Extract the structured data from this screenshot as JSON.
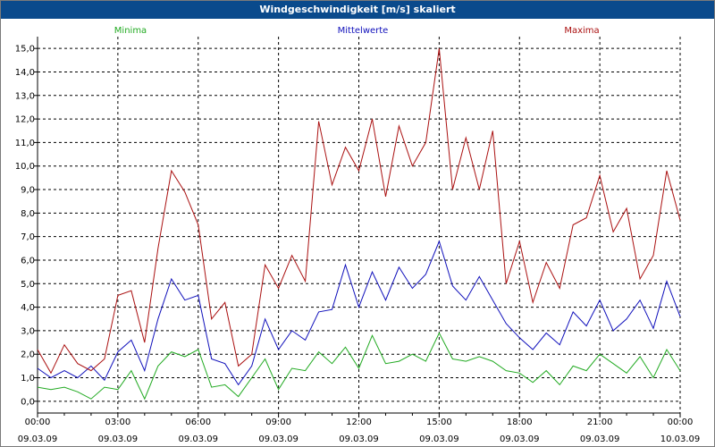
{
  "window": {
    "title": "Windgeschwindigkeit [m/s] skaliert"
  },
  "colors": {
    "minima": "#22aa22",
    "mittelwerte": "#1010bb",
    "maxima": "#aa1010",
    "grid": "#000000",
    "titlebar": "#0a4a8c"
  },
  "chart_data": {
    "type": "line",
    "title": "Windgeschwindigkeit [m/s] skaliert",
    "xlabel": "",
    "ylabel": "",
    "xlim": [
      "09.03.09 00:00",
      "10.03.09 00:00"
    ],
    "ylim": [
      -0.5,
      15.5
    ],
    "grid": true,
    "legend": "top",
    "y_ticks": [
      "0,0",
      "1,0",
      "2,0",
      "3,0",
      "4,0",
      "5,0",
      "6,0",
      "7,0",
      "8,0",
      "9,0",
      "10,0",
      "11,0",
      "12,0",
      "13,0",
      "14,0",
      "15,0"
    ],
    "x_ticks": [
      {
        "time": "00:00",
        "date": "09.03.09"
      },
      {
        "time": "03:00",
        "date": "09.03.09"
      },
      {
        "time": "06:00",
        "date": "09.03.09"
      },
      {
        "time": "09:00",
        "date": "09.03.09"
      },
      {
        "time": "12:00",
        "date": "09.03.09"
      },
      {
        "time": "15:00",
        "date": "09.03.09"
      },
      {
        "time": "18:00",
        "date": "09.03.09"
      },
      {
        "time": "21:00",
        "date": "09.03.09"
      },
      {
        "time": "00:00",
        "date": "10.03.09"
      }
    ],
    "x": [
      "00:00",
      "00:30",
      "01:00",
      "01:30",
      "02:00",
      "02:30",
      "03:00",
      "03:30",
      "04:00",
      "04:30",
      "05:00",
      "05:30",
      "06:00",
      "06:30",
      "07:00",
      "07:30",
      "08:00",
      "08:30",
      "09:00",
      "09:30",
      "10:00",
      "10:30",
      "11:00",
      "11:30",
      "12:00",
      "12:30",
      "13:00",
      "13:30",
      "14:00",
      "14:30",
      "15:00",
      "15:30",
      "16:00",
      "16:30",
      "17:00",
      "17:30",
      "18:00",
      "18:30",
      "19:00",
      "19:30",
      "20:00",
      "20:30",
      "21:00",
      "21:30",
      "22:00",
      "22:30",
      "23:00",
      "23:30",
      "00:00"
    ],
    "series": [
      {
        "name": "Minima",
        "color": "#22aa22",
        "values": [
          0.6,
          0.5,
          0.6,
          0.4,
          0.1,
          0.6,
          0.5,
          1.3,
          0.1,
          1.5,
          2.1,
          1.9,
          2.2,
          0.6,
          0.7,
          0.2,
          1.0,
          1.8,
          0.5,
          1.4,
          1.3,
          2.1,
          1.6,
          2.3,
          1.4,
          2.8,
          1.6,
          1.7,
          2.0,
          1.7,
          2.9,
          1.8,
          1.7,
          1.9,
          1.7,
          1.3,
          1.2,
          0.8,
          1.3,
          0.7,
          1.5,
          1.3,
          2.0,
          1.6,
          1.2,
          1.9,
          1.0,
          2.2,
          1.3
        ]
      },
      {
        "name": "Mittelwerte",
        "color": "#1010bb",
        "values": [
          1.4,
          1.0,
          1.3,
          1.0,
          1.5,
          0.9,
          2.1,
          2.6,
          1.3,
          3.5,
          5.2,
          4.3,
          4.5,
          1.8,
          1.6,
          0.7,
          1.5,
          3.5,
          2.2,
          3.0,
          2.6,
          3.8,
          3.9,
          5.8,
          4.0,
          5.5,
          4.3,
          5.7,
          4.8,
          5.4,
          6.8,
          4.9,
          4.3,
          5.3,
          4.3,
          3.3,
          2.7,
          2.2,
          2.9,
          2.4,
          3.8,
          3.2,
          4.3,
          3.0,
          3.5,
          4.3,
          3.1,
          5.1,
          3.6
        ]
      },
      {
        "name": "Maxima",
        "color": "#aa1010",
        "values": [
          2.2,
          1.2,
          2.4,
          1.6,
          1.3,
          1.8,
          4.5,
          4.7,
          2.5,
          6.5,
          9.8,
          8.9,
          7.5,
          3.5,
          4.2,
          1.5,
          2.0,
          5.8,
          4.8,
          6.2,
          5.1,
          11.9,
          9.2,
          10.8,
          9.8,
          12.0,
          8.7,
          11.7,
          10.0,
          11.0,
          15.0,
          9.0,
          11.2,
          9.0,
          11.5,
          5.0,
          6.8,
          4.2,
          5.9,
          4.8,
          7.5,
          7.8,
          9.6,
          7.2,
          8.2,
          5.2,
          6.2,
          9.8,
          7.7
        ]
      }
    ]
  }
}
